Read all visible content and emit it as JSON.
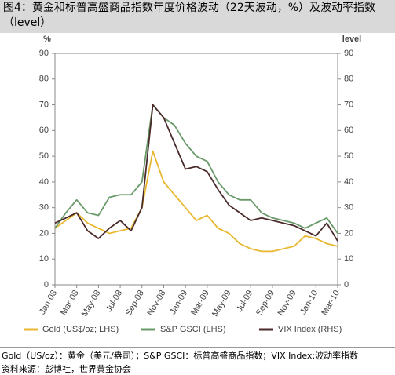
{
  "chart_data": {
    "type": "line",
    "title": "图4：黄金和标普高盛商品指数年度价格波动（22天波动，%）及波动率指数（level）",
    "ylabel": "%",
    "y2label": "level",
    "categories": [
      "Jan-08",
      null,
      "Mar-08",
      null,
      "May-08",
      null,
      "Jul-08",
      null,
      "Sep-08",
      null,
      "Nov-08",
      null,
      "Jan-09",
      null,
      "Mar-09",
      null,
      "May-09",
      null,
      "Jul-09",
      null,
      "Sep-09",
      null,
      "Nov-09",
      null,
      "Jan-10",
      null,
      "Mar-10"
    ],
    "series": [
      {
        "name": "Gold (US$/oz; LHS)",
        "color": "#e8b830",
        "values": [
          22,
          25,
          28,
          24,
          22,
          20,
          21,
          22,
          30,
          52,
          40,
          35,
          30,
          25,
          27,
          22,
          20,
          16,
          14,
          13,
          13,
          14,
          15,
          19,
          18,
          16,
          15
        ]
      },
      {
        "name": "S&P GSCI (LHS)",
        "color": "#6a9a6a",
        "values": [
          22,
          28,
          33,
          28,
          27,
          34,
          35,
          35,
          40,
          70,
          65,
          62,
          55,
          50,
          48,
          40,
          35,
          33,
          33,
          28,
          26,
          25,
          24,
          22,
          24,
          26,
          20
        ]
      },
      {
        "name": "VIX Index (RHS)",
        "color": "#4a2a2a",
        "axis": "y2",
        "values": [
          24,
          26,
          28,
          21,
          18,
          22,
          25,
          21,
          30,
          70,
          65,
          55,
          45,
          46,
          44,
          37,
          31,
          28,
          25,
          26,
          25,
          24,
          23,
          21,
          19,
          24,
          17
        ]
      }
    ],
    "ylim": [
      0,
      90
    ],
    "yticks": [
      0,
      10,
      20,
      30,
      40,
      50,
      60,
      70,
      80,
      90
    ],
    "y2lim": [
      0,
      90
    ],
    "y2ticks": [
      0,
      10,
      20,
      30,
      40,
      50,
      60,
      70,
      80,
      90
    ],
    "legend": "bottom",
    "notes": [
      "Gold（US/oz）：黄金（美元/盎司）；S&P GSCI：标普高盛商品指数；VIX Index:波动率指数",
      "资料来源：彭博社，世界黄金协会"
    ]
  }
}
